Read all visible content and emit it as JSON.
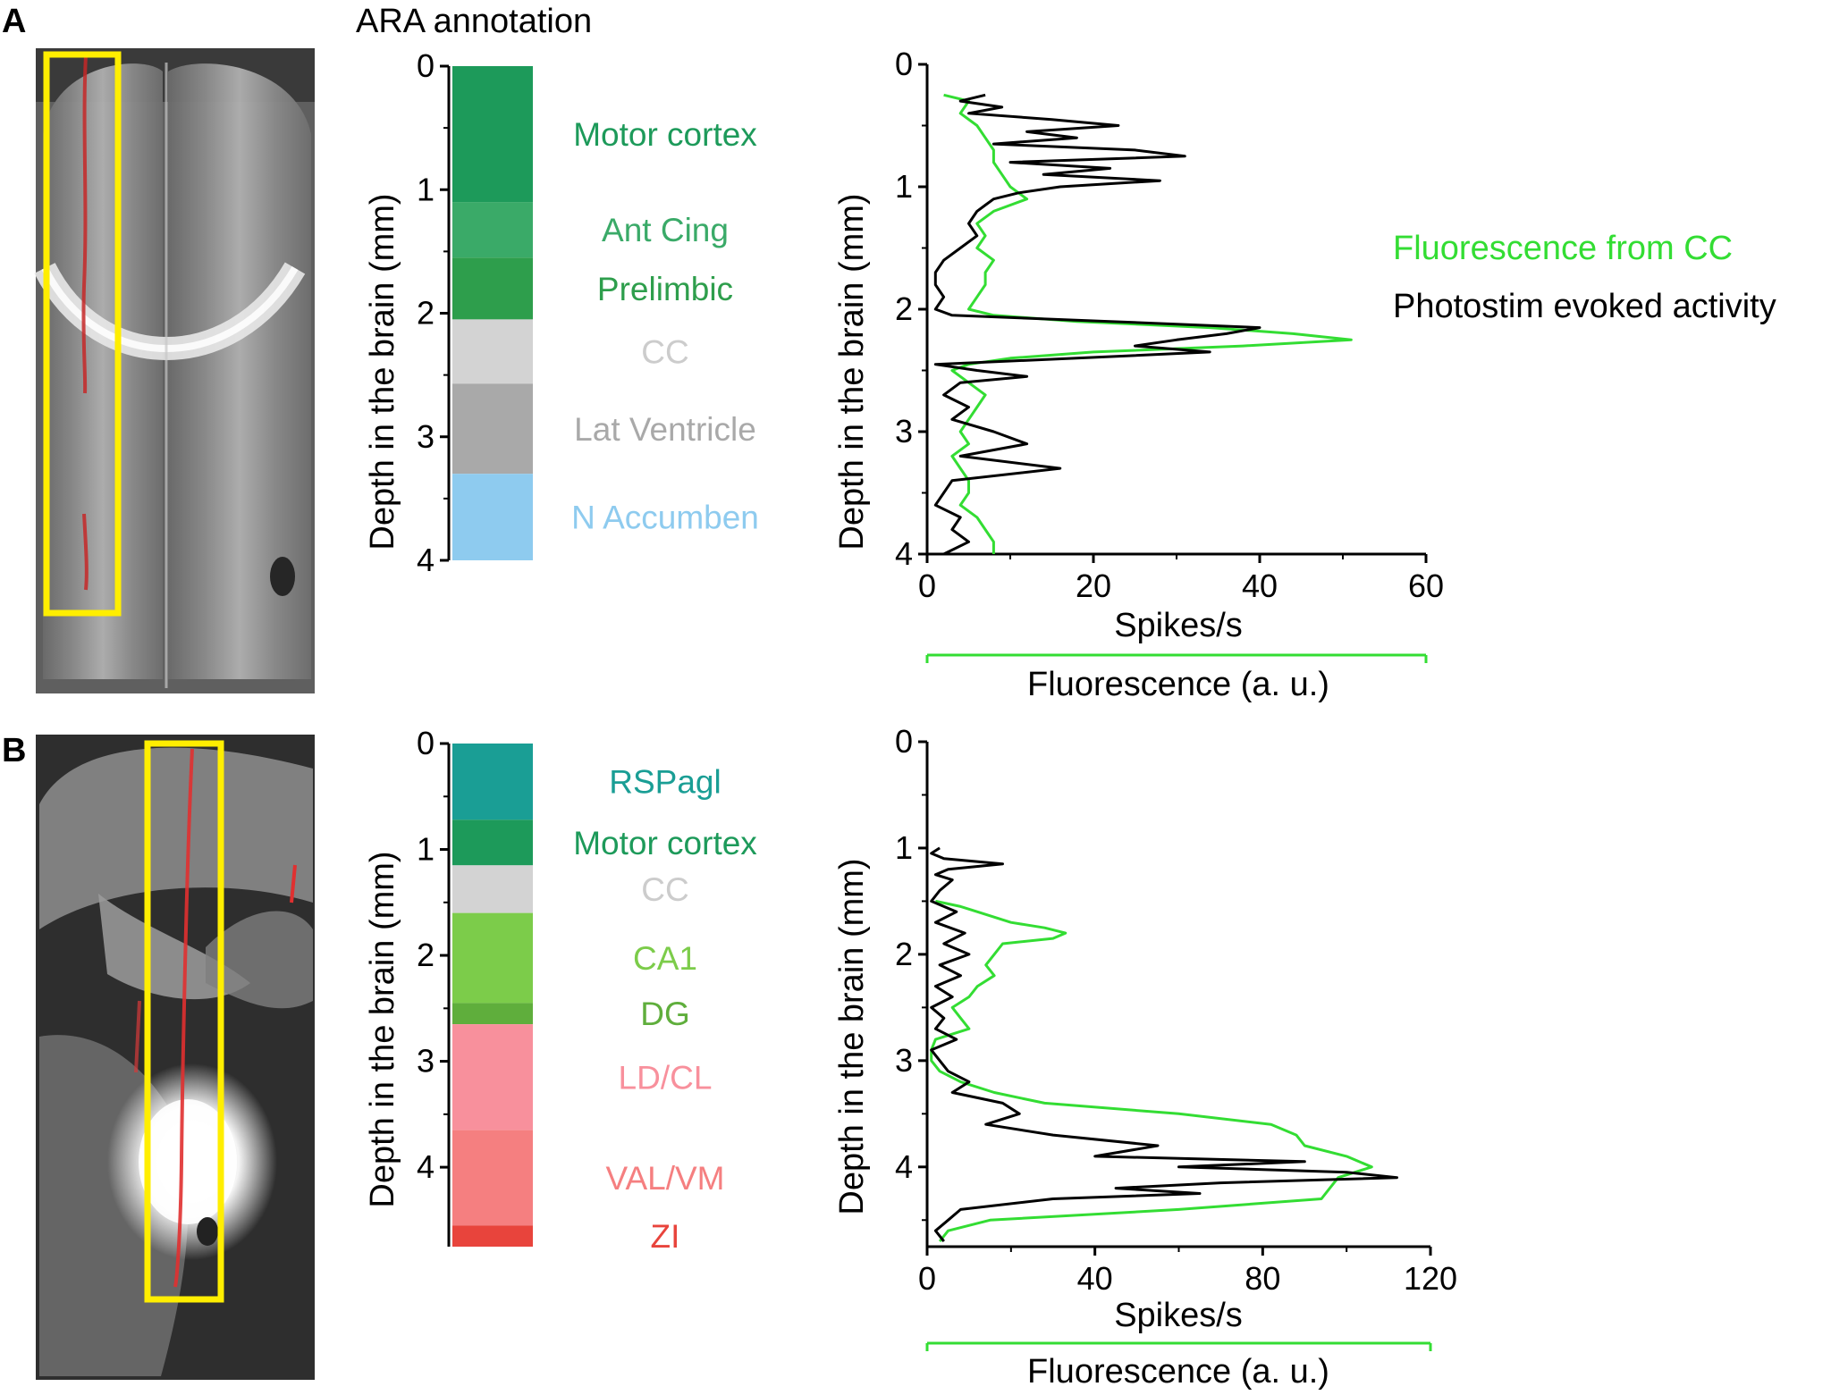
{
  "figure": {
    "header": "ARA annotation",
    "legend": {
      "fluorescence_label": "Fluorescence from CC",
      "fluorescence_color": "#33dd33",
      "activity_label": "Photostim evoked activity",
      "activity_color": "#000000"
    }
  },
  "panels": [
    {
      "letter": "A",
      "histology": {
        "image_icon": "brain-coronal-section-image",
        "probe_track_icon": "probe-track-red-line",
        "highlight_icon": "yellow-highlight-box",
        "highlight_color": "#ffee00",
        "track_color": "#d62a2a"
      },
      "annotation": {
        "ylabel": "Depth in the brain (mm)",
        "yticks": [
          "0",
          "1",
          "2",
          "3",
          "4"
        ],
        "ylim": [
          0,
          4.0
        ],
        "regions": [
          {
            "name": "Motor cortex",
            "start": 0.0,
            "end": 1.1,
            "color": "#1d9a5a",
            "label_color": "#1d9a5a"
          },
          {
            "name": "Ant Cing",
            "start": 1.1,
            "end": 1.55,
            "color": "#3aaa68",
            "label_color": "#3aaa68"
          },
          {
            "name": "Prelimbic",
            "start": 1.55,
            "end": 2.05,
            "color": "#2e9e4c",
            "label_color": "#2e9e4c"
          },
          {
            "name": "CC",
            "start": 2.05,
            "end": 2.57,
            "color": "#d3d3d3",
            "label_color": "#cccccc"
          },
          {
            "name": "Lat Ventricle",
            "start": 2.57,
            "end": 3.3,
            "color": "#a9a9a9",
            "label_color": "#a9a9a9"
          },
          {
            "name": "N Accumben",
            "start": 3.3,
            "end": 4.0,
            "color": "#8ecbef",
            "label_color": "#8ecbef"
          }
        ]
      },
      "chart_data": {
        "type": "line",
        "ylabel": "Depth in the brain (mm)",
        "xlabel": "Spikes/s",
        "xlabel2": "Fluorescence (a. u.)",
        "yticks": [
          "0",
          "1",
          "2",
          "3",
          "4"
        ],
        "ylim": [
          0,
          4.0
        ],
        "xticks": [
          "0",
          "20",
          "40",
          "60"
        ],
        "xlim": [
          0,
          60
        ],
        "series": [
          {
            "name": "Fluorescence from CC",
            "color": "#33dd33",
            "depth": [
              0.25,
              0.3,
              0.4,
              0.5,
              0.6,
              0.7,
              0.8,
              0.9,
              1.0,
              1.1,
              1.2,
              1.3,
              1.4,
              1.5,
              1.6,
              1.7,
              1.8,
              1.9,
              2.0,
              2.05,
              2.1,
              2.15,
              2.2,
              2.25,
              2.3,
              2.35,
              2.4,
              2.45,
              2.5,
              2.6,
              2.7,
              2.8,
              2.9,
              3.0,
              3.1,
              3.2,
              3.3,
              3.4,
              3.5,
              3.6,
              3.7,
              3.8,
              3.9,
              4.0
            ],
            "x": [
              2,
              5,
              4,
              6,
              7,
              8,
              8,
              9,
              10,
              12,
              8,
              6,
              7,
              6,
              8,
              7,
              7,
              6,
              5,
              8,
              18,
              34,
              44,
              51,
              38,
              20,
              10,
              5,
              3,
              5,
              7,
              6,
              5,
              4,
              5,
              3,
              4,
              5,
              5,
              4,
              6,
              7,
              8,
              8
            ]
          },
          {
            "name": "Photostim evoked activity",
            "color": "#000000",
            "depth": [
              0.25,
              0.3,
              0.35,
              0.4,
              0.45,
              0.5,
              0.55,
              0.6,
              0.65,
              0.7,
              0.75,
              0.8,
              0.85,
              0.9,
              0.95,
              1.0,
              1.05,
              1.1,
              1.15,
              1.2,
              1.3,
              1.4,
              1.5,
              1.6,
              1.7,
              1.8,
              1.9,
              2.0,
              2.05,
              2.1,
              2.15,
              2.2,
              2.25,
              2.3,
              2.35,
              2.4,
              2.45,
              2.5,
              2.55,
              2.6,
              2.7,
              2.8,
              2.9,
              3.0,
              3.1,
              3.2,
              3.3,
              3.4,
              3.5,
              3.6,
              3.7,
              3.8,
              3.9,
              4.0
            ],
            "x": [
              7,
              4,
              9,
              5,
              15,
              23,
              12,
              18,
              8,
              25,
              31,
              10,
              22,
              14,
              28,
              16,
              11,
              8,
              7,
              6,
              5,
              6,
              4,
              2,
              1,
              1,
              2,
              1,
              3,
              22,
              40,
              36,
              30,
              25,
              34,
              18,
              1,
              6,
              12,
              4,
              2,
              5,
              3,
              8,
              12,
              4,
              16,
              3,
              2,
              1,
              4,
              3,
              5,
              2
            ]
          }
        ]
      }
    },
    {
      "letter": "B",
      "histology": {
        "image_icon": "brain-coronal-section-image",
        "probe_track_icon": "probe-track-red-line",
        "highlight_icon": "yellow-highlight-box",
        "highlight_color": "#ffee00",
        "track_color": "#e03030"
      },
      "annotation": {
        "ylabel": "Depth in the brain (mm)",
        "yticks": [
          "0",
          "1",
          "2",
          "3",
          "4"
        ],
        "ylim": [
          0,
          4.75
        ],
        "regions": [
          {
            "name": "RSPagl",
            "start": 0.0,
            "end": 0.72,
            "color": "#1a9e95",
            "label_color": "#1a9e95"
          },
          {
            "name": "Motor cortex",
            "start": 0.72,
            "end": 1.15,
            "color": "#1d9a5a",
            "label_color": "#1d9a5a"
          },
          {
            "name": "CC",
            "start": 1.15,
            "end": 1.6,
            "color": "#d3d3d3",
            "label_color": "#cccccc"
          },
          {
            "name": "CA1",
            "start": 1.6,
            "end": 2.45,
            "color": "#7ccc4a",
            "label_color": "#7ccc4a"
          },
          {
            "name": "DG",
            "start": 2.45,
            "end": 2.65,
            "color": "#5fae3c",
            "label_color": "#5fae3c"
          },
          {
            "name": "LD/CL",
            "start": 2.65,
            "end": 3.65,
            "color": "#f8909c",
            "label_color": "#f8909c"
          },
          {
            "name": "VAL/VM",
            "start": 3.65,
            "end": 4.55,
            "color": "#f57f80",
            "label_color": "#f57f80"
          },
          {
            "name": "ZI",
            "start": 4.55,
            "end": 4.75,
            "color": "#e8443c",
            "label_color": "#e8443c"
          }
        ]
      },
      "chart_data": {
        "type": "line",
        "ylabel": "Depth in the brain (mm)",
        "xlabel": "Spikes/s",
        "xlabel2": "Fluorescence (a. u.)",
        "yticks": [
          "0",
          "1",
          "2",
          "3",
          "4"
        ],
        "ylim": [
          0,
          4.75
        ],
        "xticks": [
          "0",
          "40",
          "80",
          "120"
        ],
        "xlim": [
          0,
          120
        ],
        "series": [
          {
            "name": "Fluorescence from CC",
            "color": "#33dd33",
            "depth": [
              1.5,
              1.55,
              1.6,
              1.7,
              1.75,
              1.8,
              1.85,
              1.9,
              2.0,
              2.1,
              2.2,
              2.3,
              2.4,
              2.5,
              2.6,
              2.7,
              2.8,
              2.9,
              3.0,
              3.1,
              3.2,
              3.3,
              3.4,
              3.5,
              3.6,
              3.7,
              3.8,
              3.9,
              4.0,
              4.1,
              4.2,
              4.3,
              4.4,
              4.5,
              4.6,
              4.7
            ],
            "x": [
              2,
              8,
              12,
              20,
              28,
              33,
              30,
              18,
              16,
              14,
              16,
              12,
              10,
              6,
              8,
              10,
              2,
              1,
              1,
              3,
              8,
              16,
              28,
              60,
              82,
              88,
              90,
              100,
              106,
              98,
              96,
              94,
              60,
              15,
              5,
              3
            ]
          },
          {
            "name": "Photostim evoked activity",
            "color": "#000000",
            "depth": [
              1.0,
              1.05,
              1.1,
              1.15,
              1.2,
              1.25,
              1.3,
              1.4,
              1.5,
              1.6,
              1.7,
              1.8,
              1.9,
              2.0,
              2.1,
              2.2,
              2.3,
              2.4,
              2.5,
              2.6,
              2.7,
              2.8,
              2.9,
              3.0,
              3.1,
              3.2,
              3.3,
              3.4,
              3.5,
              3.6,
              3.7,
              3.8,
              3.9,
              3.95,
              4.0,
              4.05,
              4.1,
              4.15,
              4.2,
              4.25,
              4.3,
              4.4,
              4.5,
              4.6,
              4.7
            ],
            "x": [
              3,
              1,
              4,
              18,
              5,
              2,
              6,
              3,
              1,
              7,
              2,
              9,
              4,
              10,
              3,
              8,
              2,
              6,
              1,
              4,
              2,
              7,
              1,
              3,
              5,
              10,
              6,
              18,
              22,
              14,
              30,
              55,
              40,
              90,
              60,
              100,
              112,
              70,
              45,
              65,
              30,
              8,
              5,
              2,
              4
            ]
          }
        ]
      }
    }
  ]
}
